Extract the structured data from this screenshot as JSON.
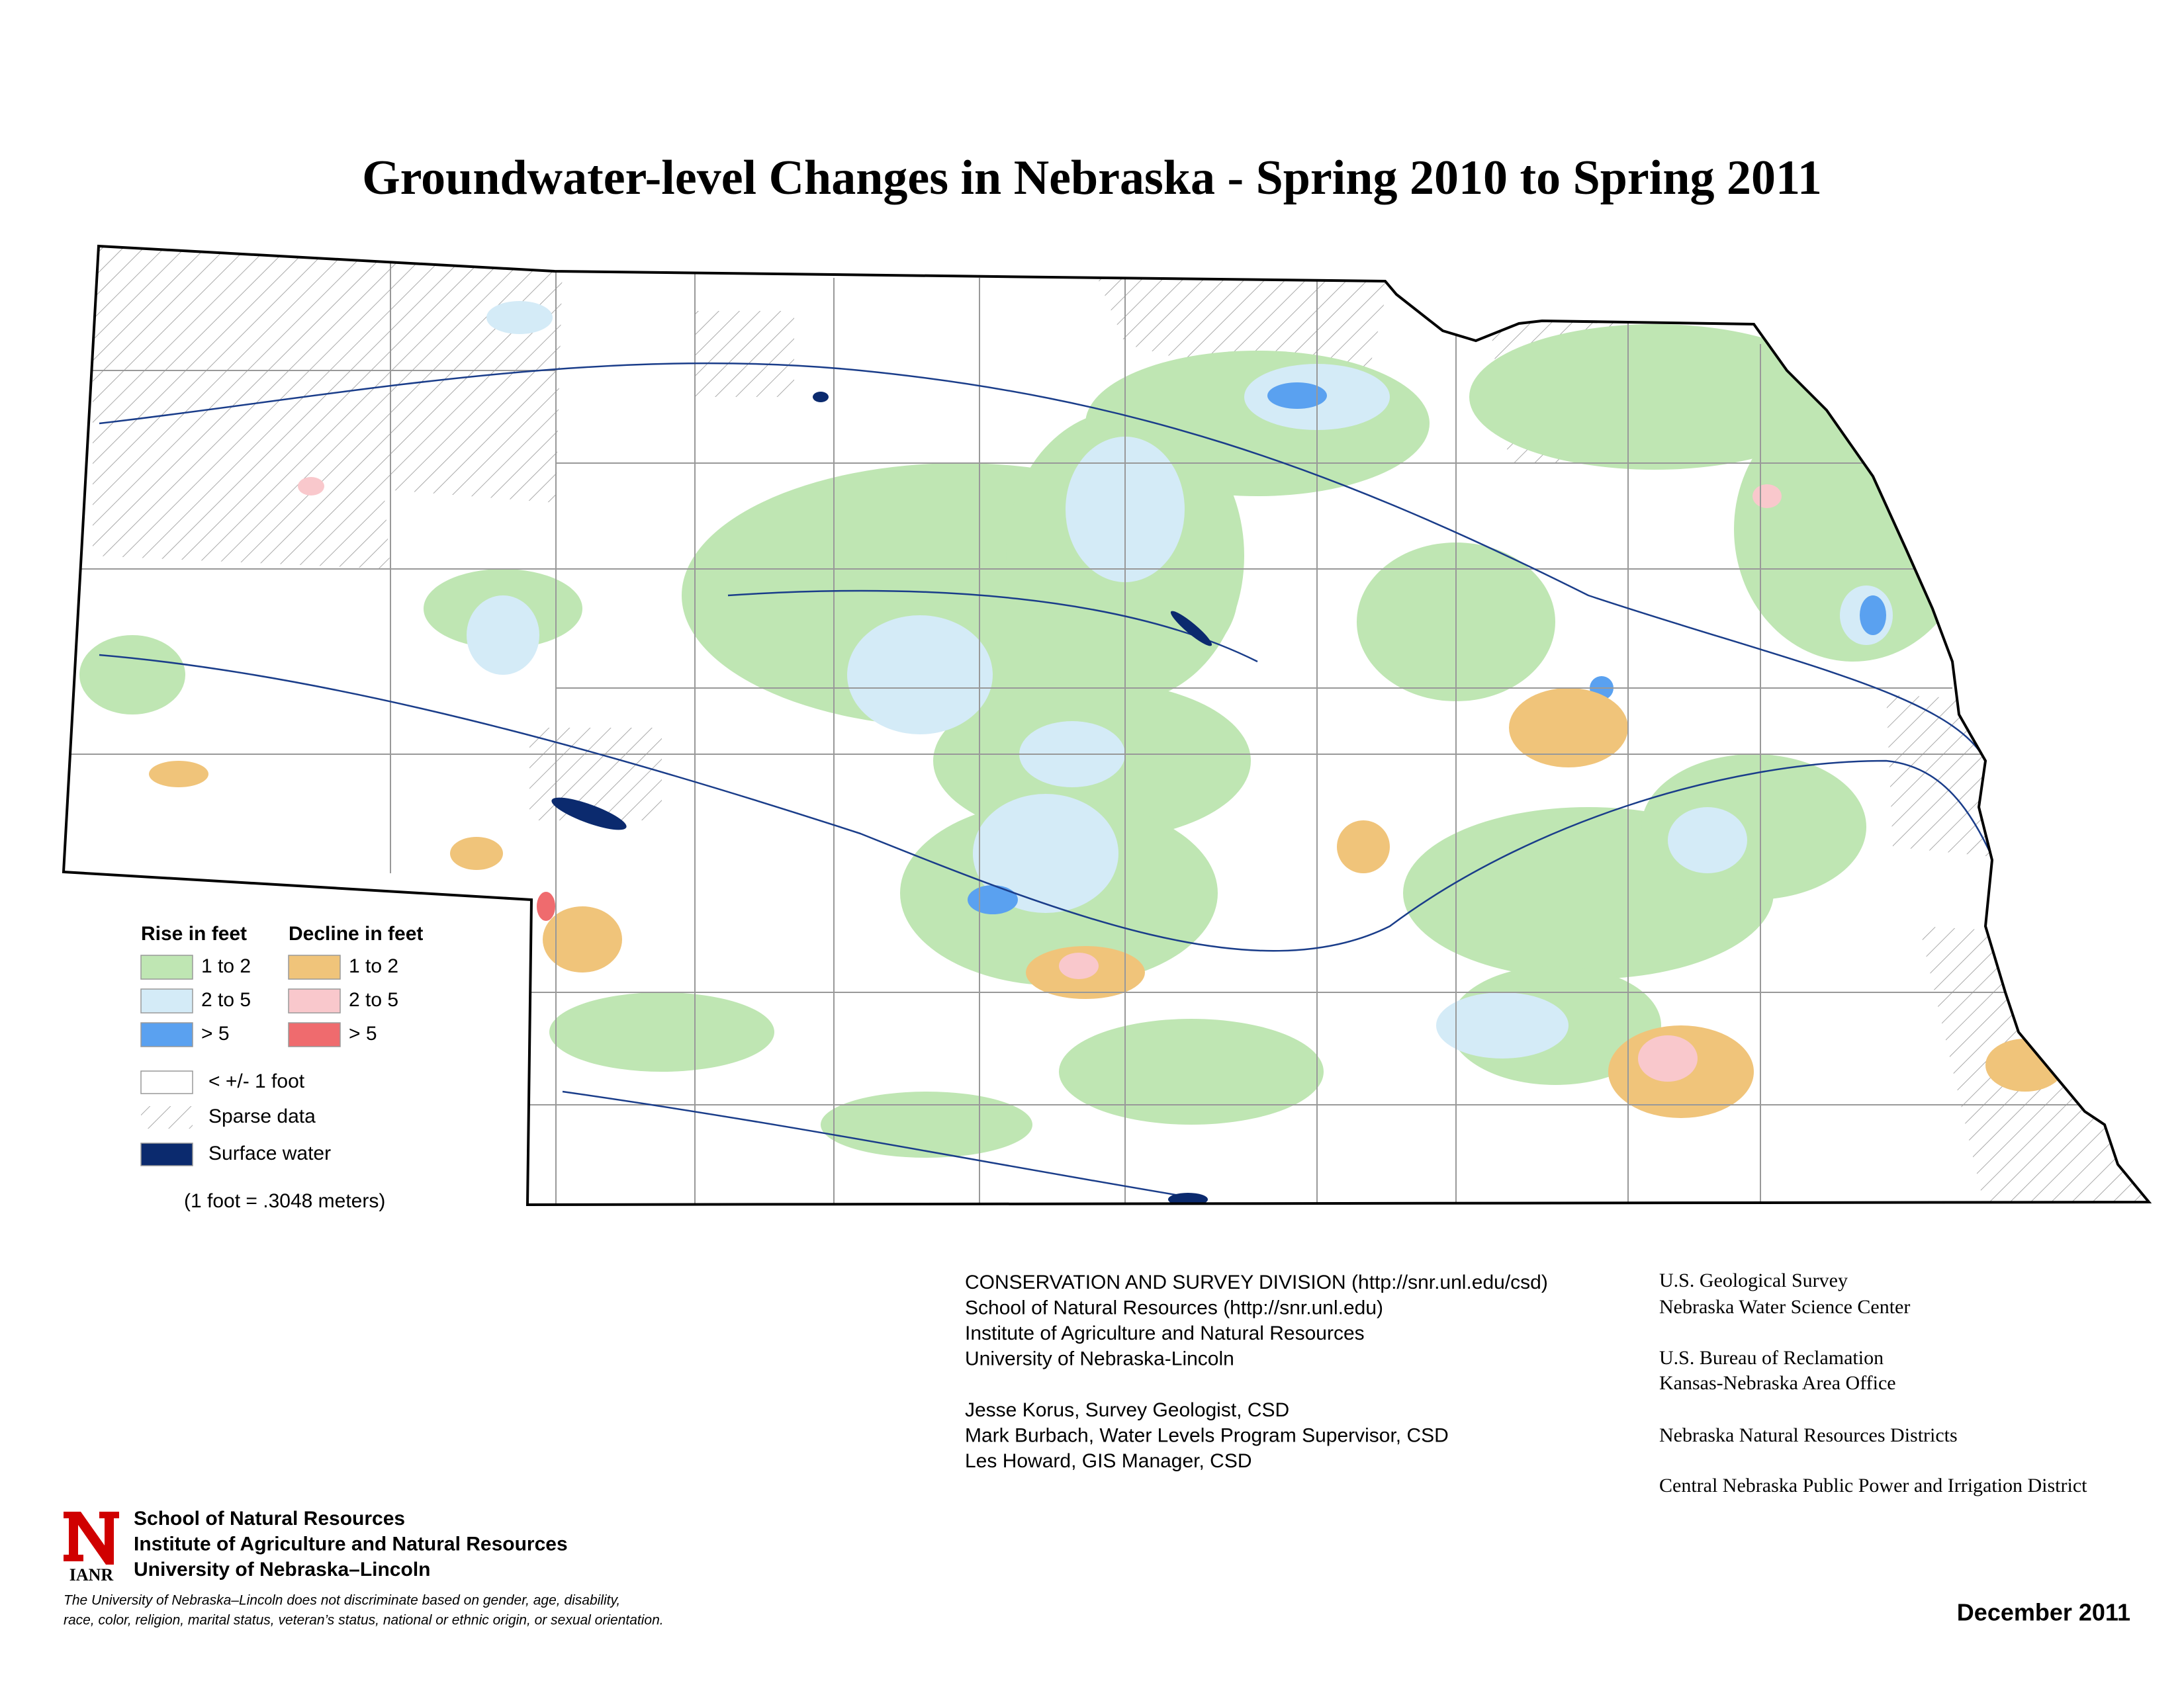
{
  "title": "Groundwater-level Changes in Nebraska - Spring 2010 to Spring 2011",
  "legend": {
    "rise_heading": "Rise in feet",
    "decline_heading": "Decline in feet",
    "rise_items": [
      "1 to 2",
      "2 to 5",
      "> 5"
    ],
    "decline_items": [
      "1 to 2",
      "2 to 5",
      "> 5"
    ],
    "other_items": [
      "< +/- 1 foot",
      "Sparse data",
      "Surface water"
    ],
    "conversion": "(1 foot = .3048 meters)"
  },
  "credits": {
    "csd": [
      "CONSERVATION AND SURVEY DIVISION (http://snr.unl.edu/csd)",
      "School of Natural Resources (http://snr.unl.edu)",
      "Institute of Agriculture and Natural Resources",
      "University of Nebraska-Lincoln"
    ],
    "staff": [
      "Jesse Korus, Survey Geologist, CSD",
      "Mark Burbach, Water Levels Program Supervisor, CSD",
      "Les Howard, GIS Manager, CSD"
    ],
    "partners": [
      "U.S. Geological Survey",
      "Nebraska Water Science Center",
      "U.S. Bureau of Reclamation",
      "Kansas-Nebraska Area Office",
      "Nebraska Natural Resources Districts",
      "Central Nebraska Public Power and Irrigation District"
    ]
  },
  "footer": {
    "logo_text": "IANR",
    "institution": [
      "School of Natural Resources",
      "Institute of Agriculture and Natural Resources",
      "University of Nebraska–Lincoln"
    ],
    "disclaimer": [
      "The University of Nebraska–Lincoln does not discriminate based on gender, age, disability,",
      "race, color, religion, marital status, veteran’s status, national or ethnic origin, or sexual orientation."
    ],
    "date": "December 2011"
  }
}
